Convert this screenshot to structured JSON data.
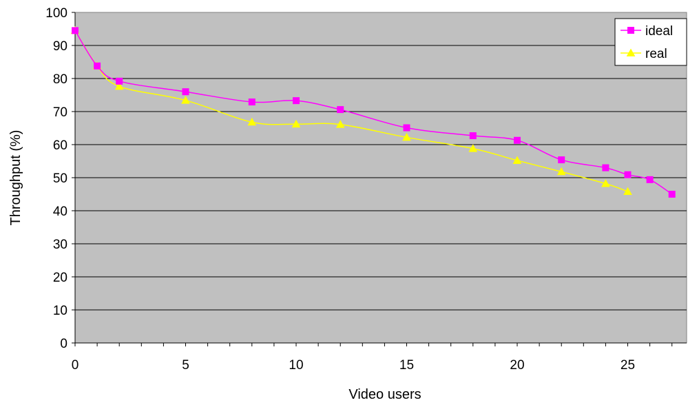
{
  "chart_data": {
    "type": "line",
    "title": "",
    "xlabel": "Video users",
    "ylabel": "Throughput (%)",
    "xlim": [
      0,
      27.5
    ],
    "ylim": [
      0,
      100
    ],
    "xticks": [
      0,
      5,
      10,
      15,
      20,
      25
    ],
    "yticks": [
      0,
      10,
      20,
      30,
      40,
      50,
      60,
      70,
      80,
      90,
      100
    ],
    "grid": "horizontal",
    "legend_position": "top-right",
    "plot_background": "#c0c0c0",
    "series": [
      {
        "name": "ideal",
        "color": "#ff00ff",
        "marker": "square",
        "x": [
          0,
          1,
          2,
          5,
          8,
          10,
          12,
          15,
          18,
          20,
          22,
          24,
          25,
          26,
          27
        ],
        "y": [
          94.5,
          83.8,
          79.2,
          76.0,
          72.9,
          73.3,
          70.6,
          65.1,
          62.7,
          61.3,
          55.4,
          53.0,
          50.9,
          49.4,
          45.0
        ]
      },
      {
        "name": "real",
        "color": "#ffff00",
        "marker": "triangle",
        "x": [
          0,
          1,
          2,
          5,
          8,
          10,
          12,
          15,
          18,
          20,
          22,
          24,
          25
        ],
        "y": [
          94.5,
          83.8,
          77.6,
          73.4,
          66.8,
          66.2,
          66.1,
          62.2,
          58.8,
          55.2,
          51.8,
          48.2,
          45.8
        ]
      }
    ]
  }
}
